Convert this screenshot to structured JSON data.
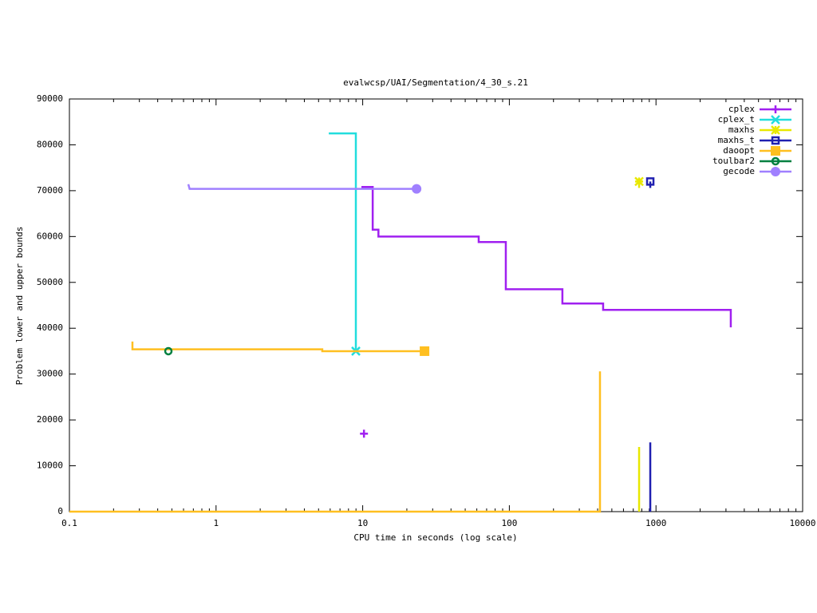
{
  "chart_data": {
    "type": "line",
    "title": "evalwcsp/UAI/Segmentation/4_30_s.21",
    "x_label": "CPU time in seconds (log scale)",
    "y_label": "Problem lower and upper bounds",
    "x_log": true,
    "xlim": [
      0.1,
      10000
    ],
    "xticks": [
      0.1,
      1,
      10,
      100,
      1000,
      10000
    ],
    "ylim": [
      0,
      90000
    ],
    "yticks": [
      0,
      10000,
      20000,
      30000,
      40000,
      50000,
      60000,
      70000,
      80000,
      90000
    ],
    "legend": "top-right",
    "series": [
      {
        "name": "cplex",
        "color": "#a020f0",
        "marker": "plus",
        "x": [
          9.8,
          11.7,
          11.7,
          12.8,
          12.8,
          61.8,
          61.8,
          94.6,
          94.6,
          230,
          230,
          436,
          436,
          3236,
          3236,
          null,
          10,
          10.2
        ],
        "values": [
          70800,
          70800,
          61500,
          61500,
          60000,
          60000,
          58800,
          58800,
          48500,
          48500,
          45400,
          45400,
          44000,
          44000,
          40200,
          null,
          17000,
          17000
        ]
      },
      {
        "name": "cplex_t",
        "color": "#22dddd",
        "marker": "cross",
        "x": [
          5.87,
          8.98,
          8.98
        ],
        "values": [
          82500,
          82500,
          35000
        ]
      },
      {
        "name": "maxhs",
        "color": "#e8e800",
        "marker": "star",
        "x": [
          767,
          767,
          null,
          767,
          767
        ],
        "values": [
          0,
          14100,
          null,
          70600,
          72000
        ]
      },
      {
        "name": "maxhs_t",
        "color": "#2020b0",
        "marker": "open-square",
        "x": [
          914,
          914,
          null,
          914,
          914
        ],
        "values": [
          0,
          15100,
          null,
          70600,
          72000
        ]
      },
      {
        "name": "daoopt",
        "color": "#ffbf20",
        "marker": "square",
        "x": [
          0.1,
          415,
          415,
          null,
          0.269,
          0.269,
          5.3,
          5.3,
          26.4
        ],
        "values": [
          0,
          0,
          30600,
          null,
          37100,
          35400,
          35400,
          35000,
          35000
        ]
      },
      {
        "name": "toulbar2",
        "color": "#008040",
        "marker": "open-circle",
        "x": [
          0.473
        ],
        "values": [
          35000
        ]
      },
      {
        "name": "gecode",
        "color": "#a080ff",
        "marker": "circle",
        "x": [
          0.647,
          0.66,
          23.3
        ],
        "values": [
          71400,
          70400,
          70400
        ]
      }
    ]
  }
}
